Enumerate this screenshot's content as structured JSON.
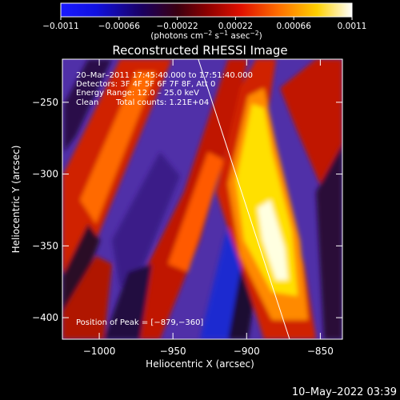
{
  "chart_data": {
    "type": "heatmap",
    "title": "Reconstructed RHESSI Image",
    "xlabel": "Heliocentric X (arcsec)",
    "ylabel": "Heliocentric Y (arcsec)",
    "xlim": [
      -1025,
      -835
    ],
    "ylim": [
      -415,
      -220
    ],
    "x_ticks": [
      {
        "value": -1000,
        "label": "−1000"
      },
      {
        "value": -950,
        "label": "−950"
      },
      {
        "value": -900,
        "label": "−900"
      },
      {
        "value": -850,
        "label": "−850"
      }
    ],
    "y_ticks": [
      {
        "value": -250,
        "label": "−250"
      },
      {
        "value": -300,
        "label": "−300"
      },
      {
        "value": -350,
        "label": "−350"
      },
      {
        "value": -400,
        "label": "−400"
      }
    ],
    "colorbar": {
      "min": -0.0011,
      "max": 0.0011,
      "ticks": [
        {
          "value": -0.0011,
          "label": "−0.0011"
        },
        {
          "value": -0.00066,
          "label": "−0.00066"
        },
        {
          "value": -0.00022,
          "label": "−0.00022"
        },
        {
          "value": 0.00022,
          "label": "0.00022"
        },
        {
          "value": 0.00066,
          "label": "0.00066"
        },
        {
          "value": 0.0011,
          "label": "0.0011"
        }
      ],
      "units_prefix": "(photons cm",
      "units_exp1": "−2",
      "units_mid": " s",
      "units_exp2": "−1",
      "units_mid2": " asec",
      "units_exp3": "−2",
      "units_suffix": ")"
    },
    "annotations": {
      "time_range": "20–Mar–2011 17:45:40.000 to 17:51:40.000",
      "detectors": "Detectors: 3F 4F 5F 6F 7F 8F, Att 0",
      "energy_range": "Energy Range: 12.0 – 25.0 keV",
      "clean_label": "Clean",
      "total_counts": "Total counts: 1.21E+04",
      "peak_position": "Position of Peak = [−879,−360]"
    },
    "footer_date": "10–May–2022 03:39",
    "peak": [
      -879,
      -360
    ]
  }
}
